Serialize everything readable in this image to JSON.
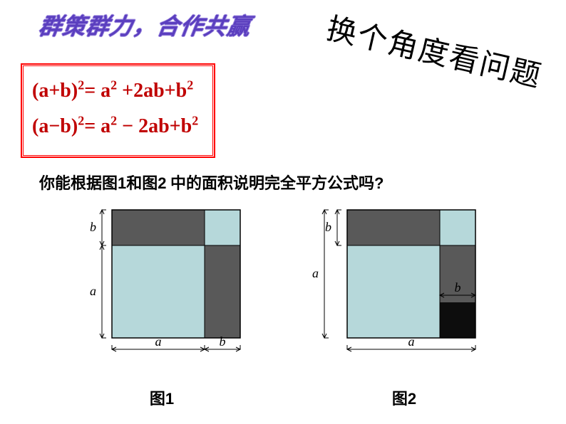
{
  "stylized_title": "群策群力，合作共赢",
  "rotated_title": "换个角度看问题",
  "formula": {
    "line1_html": "(a+b)<sup>2</sup>= a<sup>2</sup> +2ab+b<sup>2</sup>",
    "line2_html": "(a−b)<sup>2</sup>= a<sup>2</sup> − 2ab+b<sup>2</sup>",
    "text_color": "#c00000",
    "border_color": "#ff0000"
  },
  "question": {
    "prefix": "你能根据图",
    "n1": "1",
    "mid": "和图",
    "n2": "2",
    "suffix": " 中的面积说明完全平方公式吗",
    "qmark": "?"
  },
  "colors": {
    "dark_gray": "#595959",
    "light_teal": "#b6d8da",
    "stroke": "#000000",
    "background": "#ffffff"
  },
  "diagram1": {
    "label_prefix": "图",
    "label_num": "1",
    "outer_size": 180,
    "a": 130,
    "b": 50,
    "label_a": "a",
    "label_b": "b"
  },
  "diagram2": {
    "label_prefix": "图",
    "label_num": "2",
    "outer_size": 180,
    "a": 180,
    "b": 50,
    "label_a": "a",
    "label_b": "b"
  }
}
